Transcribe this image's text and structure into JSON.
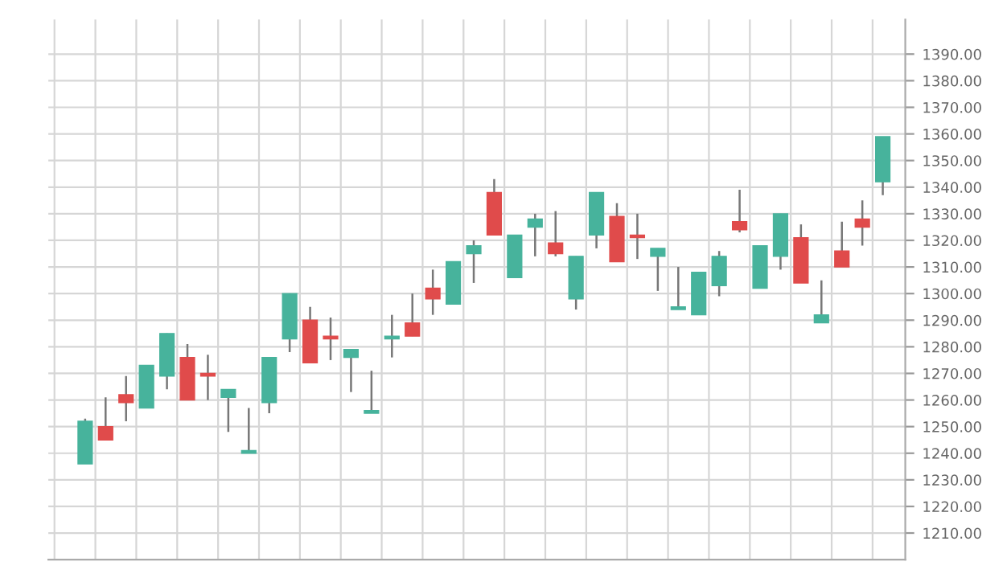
{
  "chart_data": {
    "type": "candlestick",
    "categories": [
      null,
      null,
      null,
      null,
      null,
      null,
      null,
      null,
      null,
      null,
      null,
      null,
      null,
      null,
      null,
      null,
      null,
      null,
      null,
      null,
      null,
      null,
      null,
      null,
      null,
      null,
      null,
      null,
      null,
      null,
      null,
      null,
      null,
      null,
      null,
      null,
      null,
      null,
      null,
      null
    ],
    "ohlc": [
      [
        1236,
        1253,
        1236,
        1252
      ],
      [
        1250,
        1261,
        1245,
        1245
      ],
      [
        1262,
        1269,
        1252,
        1259
      ],
      [
        1257,
        1273,
        1257,
        1273
      ],
      [
        1269,
        1285,
        1264,
        1285
      ],
      [
        1276,
        1281,
        1260,
        1260
      ],
      [
        1270,
        1277,
        1260,
        1269
      ],
      [
        1261,
        1264,
        1248,
        1264
      ],
      [
        1240,
        1257,
        1240,
        1241
      ],
      [
        1259,
        1276,
        1255,
        1276
      ],
      [
        1283,
        1300,
        1278,
        1300
      ],
      [
        1290,
        1295,
        1274,
        1274
      ],
      [
        1284,
        1291,
        1275,
        1283
      ],
      [
        1276,
        1279,
        1263,
        1279
      ],
      [
        1255,
        1271,
        1255,
        1256
      ],
      [
        1283,
        1292,
        1276,
        1284
      ],
      [
        1289,
        1300,
        1284,
        1284
      ],
      [
        1302,
        1309,
        1292,
        1298
      ],
      [
        1296,
        1312,
        1296,
        1312
      ],
      [
        1315,
        1320,
        1304,
        1318
      ],
      [
        1338,
        1343,
        1322,
        1322
      ],
      [
        1306,
        1322,
        1306,
        1322
      ],
      [
        1325,
        1330,
        1314,
        1328
      ],
      [
        1319,
        1331,
        1314,
        1315
      ],
      [
        1298,
        1314,
        1294,
        1314
      ],
      [
        1322,
        1338,
        1317,
        1338
      ],
      [
        1329,
        1334,
        1312,
        1312
      ],
      [
        1322,
        1330,
        1313,
        1321
      ],
      [
        1314,
        1317,
        1301,
        1317
      ],
      [
        1294,
        1310,
        1294,
        1295
      ],
      [
        1292,
        1308,
        1292,
        1308
      ],
      [
        1303,
        1316,
        1299,
        1314
      ],
      [
        1327,
        1339,
        1323,
        1324
      ],
      [
        1302,
        1318,
        1302,
        1318
      ],
      [
        1314,
        1330,
        1309,
        1330
      ],
      [
        1321,
        1326,
        1304,
        1304
      ],
      [
        1289,
        1305,
        1289,
        1292
      ],
      [
        1316,
        1327,
        1310,
        1310
      ],
      [
        1328,
        1335,
        1318,
        1325
      ],
      [
        1342,
        1359,
        1337,
        1359
      ]
    ],
    "colors": [
      "#47b39c",
      "#e04b4b",
      "#e04b4b",
      "#47b39c",
      "#47b39c",
      "#e04b4b",
      "#e04b4b",
      "#47b39c",
      "#47b39c",
      "#47b39c",
      "#47b39c",
      "#e04b4b",
      "#e04b4b",
      "#47b39c",
      "#47b39c",
      "#47b39c",
      "#e04b4b",
      "#e04b4b",
      "#47b39c",
      "#47b39c",
      "#e04b4b",
      "#47b39c",
      "#47b39c",
      "#e04b4b",
      "#47b39c",
      "#47b39c",
      "#e04b4b",
      "#e04b4b",
      "#47b39c",
      "#47b39c",
      "#47b39c",
      "#47b39c",
      "#e04b4b",
      "#47b39c",
      "#47b39c",
      "#e04b4b",
      "#47b39c",
      "#e04b4b",
      "#e04b4b",
      "#47b39c"
    ],
    "ylim": [
      1200,
      1403
    ],
    "yticks": [
      {
        "value": 1210,
        "label": "1210.00"
      },
      {
        "value": 1220,
        "label": "1220.00"
      },
      {
        "value": 1230,
        "label": "1230.00"
      },
      {
        "value": 1240,
        "label": "1240.00"
      },
      {
        "value": 1250,
        "label": "1250.00"
      },
      {
        "value": 1260,
        "label": "1260.00"
      },
      {
        "value": 1270,
        "label": "1270.00"
      },
      {
        "value": 1280,
        "label": "1280.00"
      },
      {
        "value": 1290,
        "label": "1290.00"
      },
      {
        "value": 1300,
        "label": "1300.00"
      },
      {
        "value": 1310,
        "label": "1310.00"
      },
      {
        "value": 1320,
        "label": "1320.00"
      },
      {
        "value": 1330,
        "label": "1330.00"
      },
      {
        "value": 1340,
        "label": "1340.00"
      },
      {
        "value": 1350,
        "label": "1350.00"
      },
      {
        "value": 1360,
        "label": "1360.00"
      },
      {
        "value": 1370,
        "label": "1370.00"
      },
      {
        "value": 1380,
        "label": "1380.00"
      },
      {
        "value": 1390,
        "label": "1390.00"
      }
    ],
    "grid": true,
    "tick_labels": "y"
  }
}
